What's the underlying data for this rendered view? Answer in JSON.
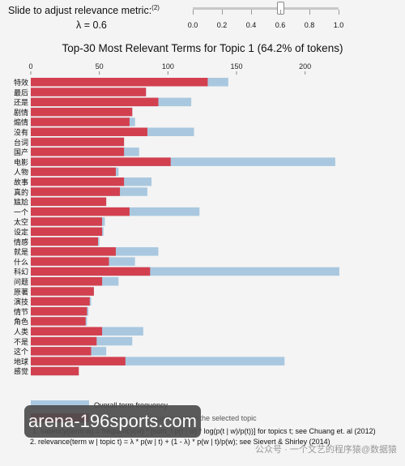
{
  "slider": {
    "label": "Slide to adjust relevance metric:",
    "footnote_ref": "(2)",
    "lambda_text": "λ = 0.6",
    "value": 0.6,
    "scale_labels": [
      "0.0",
      "0.2",
      "0.4",
      "0.6",
      "0.8",
      "1.0"
    ]
  },
  "colors": {
    "overall": "#a9c8e0",
    "topic": "#d2404f",
    "page_background": "#f4f4f4"
  },
  "chart_data": {
    "type": "bar",
    "orientation": "horizontal",
    "title": "Top-30 Most Relevant Terms for Topic 1 (64.2% of tokens)",
    "xlim": [
      0,
      225
    ],
    "x_ticks": [
      0,
      50,
      100,
      150,
      200
    ],
    "x_axis_position": "top",
    "categories": [
      "特效",
      "最后",
      "还是",
      "剧情",
      "煽情",
      "没有",
      "台词",
      "国产",
      "电影",
      "人物",
      "故事",
      "真的",
      "尴尬",
      "一个",
      "太空",
      "设定",
      "情感",
      "就是",
      "什么",
      "科幻",
      "问题",
      "原著",
      "演技",
      "情节",
      "角色",
      "人类",
      "不是",
      "这个",
      "地球",
      "感觉"
    ],
    "series": [
      {
        "name": "Overall term frequency",
        "values": [
          144,
          84,
          117,
          74,
          76,
          119,
          68,
          79,
          222,
          64,
          88,
          85,
          55,
          123,
          54,
          53,
          50,
          93,
          76,
          225,
          64,
          46,
          44,
          42,
          41,
          82,
          74,
          55,
          185,
          35
        ]
      },
      {
        "name": "Estimated term frequency within the selected topic",
        "values": [
          129,
          84,
          93,
          74,
          72,
          85,
          68,
          68,
          102,
          62,
          68,
          65,
          55,
          72,
          52,
          52,
          49,
          62,
          57,
          87,
          52,
          46,
          43,
          41,
          40,
          52,
          48,
          44,
          69,
          35
        ]
      }
    ]
  },
  "legend": {
    "overall_label": "Overall term frequency",
    "topic_label": "Estimated term frequency within the selected topic"
  },
  "notes": {
    "note1": "1. saliency(term w) = frequency(w) * [sum_t p(t | w) * log(p(t | w)/p(t))] for topics t; see Chuang et. al (2012)",
    "note2": "2. relevance(term w | topic t) = λ * p(w | t) + (1 - λ) * p(w | t)/p(w); see Sievert & Shirley (2014)"
  },
  "watermark": {
    "banner_text": "arena-196sports.com",
    "wechat_text": "公众号 · 一个文艺的程序猿@数据猿"
  }
}
